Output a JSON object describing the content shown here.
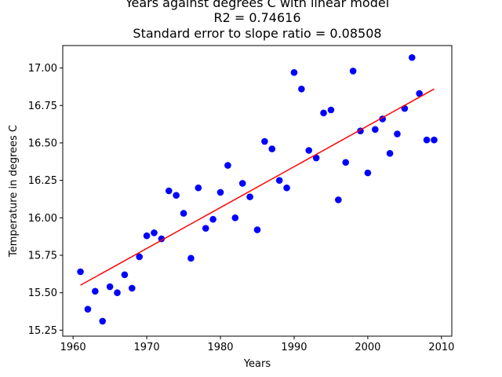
{
  "chart_data": {
    "type": "scatter",
    "title_lines": [
      "Years against degrees C with linear model",
      "R2 = 0.74616",
      "Standard error to slope ratio = 0.08508"
    ],
    "xlabel": "Years",
    "ylabel": "Temperature in degrees C",
    "xlim": [
      1958.6,
      2011.4
    ],
    "ylim": [
      15.21,
      17.15
    ],
    "x_ticks": [
      1960,
      1970,
      1980,
      1990,
      2000,
      2010
    ],
    "y_ticks": [
      15.25,
      15.5,
      15.75,
      16.0,
      16.25,
      16.5,
      16.75,
      17.0
    ],
    "y_tick_labels": [
      "15.25",
      "15.50",
      "15.75",
      "16.00",
      "16.25",
      "16.50",
      "16.75",
      "17.00"
    ],
    "grid": false,
    "series": [
      {
        "kind": "points",
        "color": "#0000ff",
        "x": [
          1961,
          1962,
          1963,
          1964,
          1965,
          1966,
          1967,
          1968,
          1969,
          1970,
          1971,
          1972,
          1973,
          1974,
          1975,
          1976,
          1977,
          1978,
          1979,
          1980,
          1981,
          1982,
          1983,
          1984,
          1985,
          1986,
          1987,
          1988,
          1989,
          1990,
          1991,
          1992,
          1993,
          1994,
          1995,
          1996,
          1997,
          1998,
          1999,
          2000,
          2001,
          2002,
          2003,
          2004,
          2005,
          2006,
          2007,
          2008,
          2009
        ],
        "y": [
          15.64,
          15.39,
          15.51,
          15.31,
          15.54,
          15.5,
          15.62,
          15.53,
          15.74,
          15.88,
          15.9,
          15.86,
          16.18,
          16.15,
          16.03,
          15.73,
          16.2,
          15.93,
          15.99,
          16.17,
          16.35,
          16.0,
          16.23,
          16.14,
          15.92,
          16.51,
          16.46,
          16.25,
          16.2,
          16.97,
          16.86,
          16.45,
          16.4,
          16.7,
          16.72,
          16.12,
          16.37,
          16.98,
          16.58,
          16.3,
          16.59,
          16.66,
          16.43,
          16.56,
          16.73,
          17.07,
          16.83,
          16.52,
          16.52
        ]
      },
      {
        "kind": "fit-line",
        "color": "#ff0000",
        "x": [
          1961,
          2009
        ],
        "y": [
          15.55,
          16.86
        ]
      }
    ]
  }
}
